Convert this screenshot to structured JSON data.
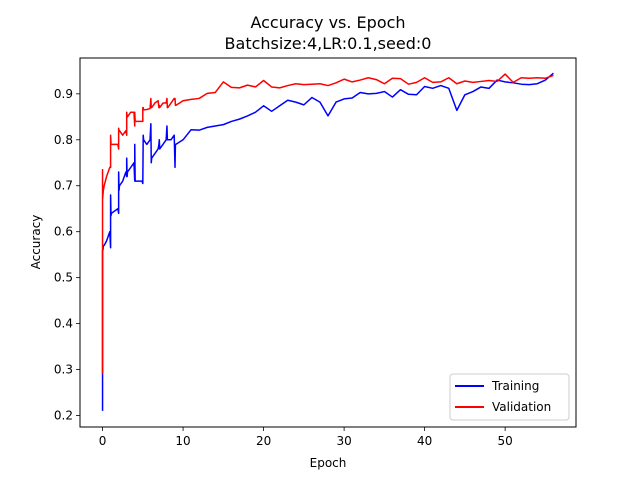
{
  "chart_data": {
    "type": "line",
    "title": "Accuracy vs. Epoch",
    "subtitle": "Batchsize:4,LR:0.1,seed:0",
    "xlabel": "Epoch",
    "ylabel": "Accuracy",
    "xlim": [
      -2.8,
      58.8
    ],
    "ylim": [
      0.175,
      0.978
    ],
    "xticks": [
      0,
      10,
      20,
      30,
      40,
      50
    ],
    "yticks": [
      0.2,
      0.3,
      0.4,
      0.5,
      0.6,
      0.7,
      0.8,
      0.9
    ],
    "legend_position": "lower-right",
    "grid": false,
    "series": [
      {
        "name": "Training",
        "color": "#0000ff",
        "x": [
          0,
          0,
          0,
          0.05,
          0.1,
          0.15,
          0.2,
          0.5,
          0.9,
          1.0,
          1.0,
          1.05,
          1.1,
          1.5,
          1.9,
          2.0,
          2.0,
          2.05,
          2.1,
          2.5,
          2.9,
          3.0,
          3.0,
          3.05,
          3.1,
          3.5,
          3.9,
          4.0,
          4.0,
          4.05,
          4.1,
          4.5,
          4.9,
          5.0,
          5.05,
          5.1,
          5.5,
          5.9,
          6.0,
          6.05,
          6.1,
          6.5,
          6.9,
          7.0,
          7.05,
          7.1,
          7.5,
          7.9,
          8.0,
          8.05,
          8.1,
          8.5,
          8.9,
          9.0,
          9.05,
          9.1,
          10,
          11,
          12,
          13,
          14,
          15,
          16,
          17,
          18,
          19,
          20,
          21,
          22,
          23,
          24,
          25,
          26,
          27,
          28,
          29,
          30,
          31,
          32,
          33,
          34,
          35,
          36,
          37,
          38,
          39,
          40,
          41,
          42,
          43,
          44,
          45,
          46,
          47,
          48,
          49,
          50,
          51,
          52,
          53,
          54,
          55,
          56
        ],
        "y": [
          0.21,
          0.29,
          0.56,
          0.56,
          0.57,
          0.57,
          0.57,
          0.58,
          0.6,
          0.565,
          0.68,
          0.635,
          0.64,
          0.645,
          0.65,
          0.64,
          0.73,
          0.69,
          0.7,
          0.71,
          0.73,
          0.72,
          0.76,
          0.72,
          0.73,
          0.74,
          0.75,
          0.71,
          0.79,
          0.71,
          0.71,
          0.71,
          0.71,
          0.705,
          0.81,
          0.8,
          0.79,
          0.8,
          0.835,
          0.75,
          0.76,
          0.77,
          0.78,
          0.79,
          0.8,
          0.78,
          0.79,
          0.8,
          0.83,
          0.8,
          0.8,
          0.8,
          0.81,
          0.74,
          0.79,
          0.79,
          0.8,
          0.822,
          0.821,
          0.827,
          0.83,
          0.833,
          0.84,
          0.845,
          0.852,
          0.86,
          0.874,
          0.862,
          0.874,
          0.886,
          0.882,
          0.876,
          0.892,
          0.882,
          0.852,
          0.882,
          0.889,
          0.891,
          0.903,
          0.9,
          0.901,
          0.905,
          0.893,
          0.909,
          0.899,
          0.898,
          0.916,
          0.912,
          0.918,
          0.912,
          0.864,
          0.898,
          0.905,
          0.915,
          0.912,
          0.93,
          0.926,
          0.924,
          0.921,
          0.92,
          0.922,
          0.93,
          0.945
        ]
      },
      {
        "name": "Validation",
        "color": "#ff0000",
        "x": [
          0,
          0,
          0,
          0.05,
          0.1,
          0.2,
          0.5,
          0.9,
          1.0,
          1.0,
          1.05,
          1.1,
          1.5,
          1.9,
          2.0,
          2.0,
          2.05,
          2.1,
          2.5,
          2.9,
          3.0,
          3.0,
          3.05,
          3.1,
          3.5,
          3.9,
          4.0,
          4.0,
          4.05,
          4.1,
          4.5,
          4.9,
          5.0,
          5.0,
          5.05,
          5.1,
          5.5,
          5.9,
          6.0,
          6.05,
          6.1,
          6.5,
          6.9,
          7.0,
          7.05,
          7.1,
          7.5,
          7.9,
          8.0,
          8.05,
          8.1,
          8.5,
          8.9,
          9.0,
          9.05,
          9.1,
          10,
          11,
          12,
          13,
          14,
          15,
          16,
          17,
          18,
          19,
          20,
          21,
          22,
          23,
          24,
          25,
          26,
          27,
          28,
          29,
          30,
          31,
          32,
          33,
          34,
          35,
          36,
          37,
          38,
          39,
          40,
          41,
          42,
          43,
          44,
          45,
          46,
          47,
          48,
          49,
          50,
          51,
          52,
          53,
          54,
          55,
          56
        ],
        "y": [
          0.29,
          0.735,
          0.67,
          0.68,
          0.69,
          0.7,
          0.72,
          0.74,
          0.74,
          0.81,
          0.79,
          0.79,
          0.79,
          0.79,
          0.78,
          0.825,
          0.82,
          0.82,
          0.81,
          0.82,
          0.81,
          0.86,
          0.85,
          0.85,
          0.86,
          0.86,
          0.83,
          0.86,
          0.84,
          0.84,
          0.84,
          0.84,
          0.84,
          0.87,
          0.87,
          0.865,
          0.866,
          0.868,
          0.89,
          0.87,
          0.87,
          0.88,
          0.885,
          0.87,
          0.875,
          0.87,
          0.88,
          0.88,
          0.89,
          0.87,
          0.87,
          0.88,
          0.89,
          0.89,
          0.875,
          0.875,
          0.885,
          0.888,
          0.89,
          0.901,
          0.903,
          0.926,
          0.914,
          0.913,
          0.919,
          0.915,
          0.929,
          0.915,
          0.913,
          0.918,
          0.922,
          0.92,
          0.921,
          0.922,
          0.918,
          0.924,
          0.932,
          0.926,
          0.93,
          0.935,
          0.931,
          0.922,
          0.934,
          0.933,
          0.921,
          0.925,
          0.935,
          0.925,
          0.926,
          0.935,
          0.922,
          0.928,
          0.925,
          0.927,
          0.929,
          0.927,
          0.943,
          0.925,
          0.935,
          0.934,
          0.935,
          0.934,
          0.94
        ]
      }
    ]
  }
}
